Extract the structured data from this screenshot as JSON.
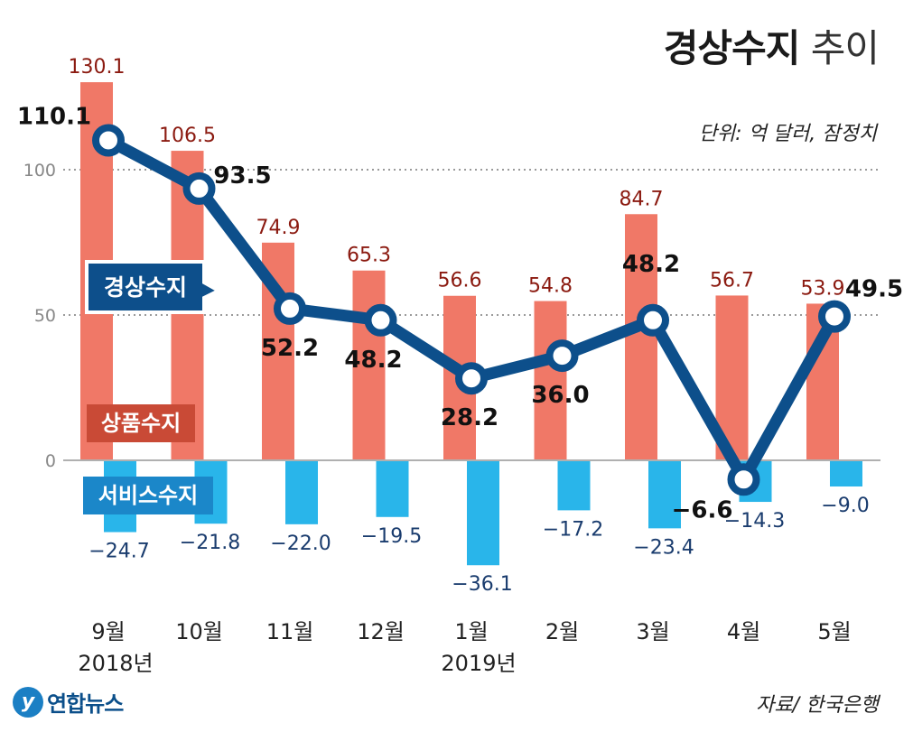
{
  "header": {
    "title_bold": "경상수지",
    "title_light": "추이",
    "unit": "단위: 억 달러, 잠정치"
  },
  "footer": {
    "source": "자료/ 한국은행",
    "logo_mark": "y",
    "logo_text": "연합뉴스"
  },
  "colors": {
    "goods": "#f07867",
    "services": "#29b5ea",
    "current": "#0d4f8b",
    "goods_label_text": "#8b1a10",
    "services_label_text": "#1a3c6e"
  },
  "chart_data": {
    "type": "bar+line",
    "title": "경상수지 추이",
    "categories": [
      "9월",
      "10월",
      "11월",
      "12월",
      "1월",
      "2월",
      "3월",
      "4월",
      "5월"
    ],
    "year_labels": [
      "2018년",
      "",
      "",
      "",
      "2019년",
      "",
      "",
      "",
      ""
    ],
    "ylim": [
      -40,
      130
    ],
    "yticks": [
      0,
      50,
      100
    ],
    "series": [
      {
        "name": "상품수지",
        "type": "bar",
        "values": [
          130.1,
          106.5,
          74.9,
          65.3,
          56.6,
          54.8,
          84.7,
          56.7,
          53.9
        ],
        "labels": [
          "130.1",
          "106.5",
          "74.9",
          "65.3",
          "56.6",
          "54.8",
          "84.7",
          "56.7",
          "53.9"
        ]
      },
      {
        "name": "서비스수지",
        "type": "bar",
        "values": [
          -24.7,
          -21.8,
          -22.0,
          -19.5,
          -36.1,
          -17.2,
          -23.4,
          -14.3,
          -9.0
        ],
        "labels": [
          "−24.7",
          "−21.8",
          "−22.0",
          "−19.5",
          "−36.1",
          "−17.2",
          "−23.4",
          "−14.3",
          "−9.0"
        ]
      },
      {
        "name": "경상수지",
        "type": "line",
        "values": [
          110.1,
          93.5,
          52.2,
          48.2,
          28.2,
          36.0,
          48.2,
          -6.6,
          49.5
        ],
        "labels": [
          "110.1",
          "93.5",
          "52.2",
          "48.2",
          "28.2",
          "36.0",
          "48.2",
          "−6.6",
          "49.5"
        ]
      }
    ],
    "legend": [
      "경상수지",
      "상품수지",
      "서비스수지"
    ]
  }
}
